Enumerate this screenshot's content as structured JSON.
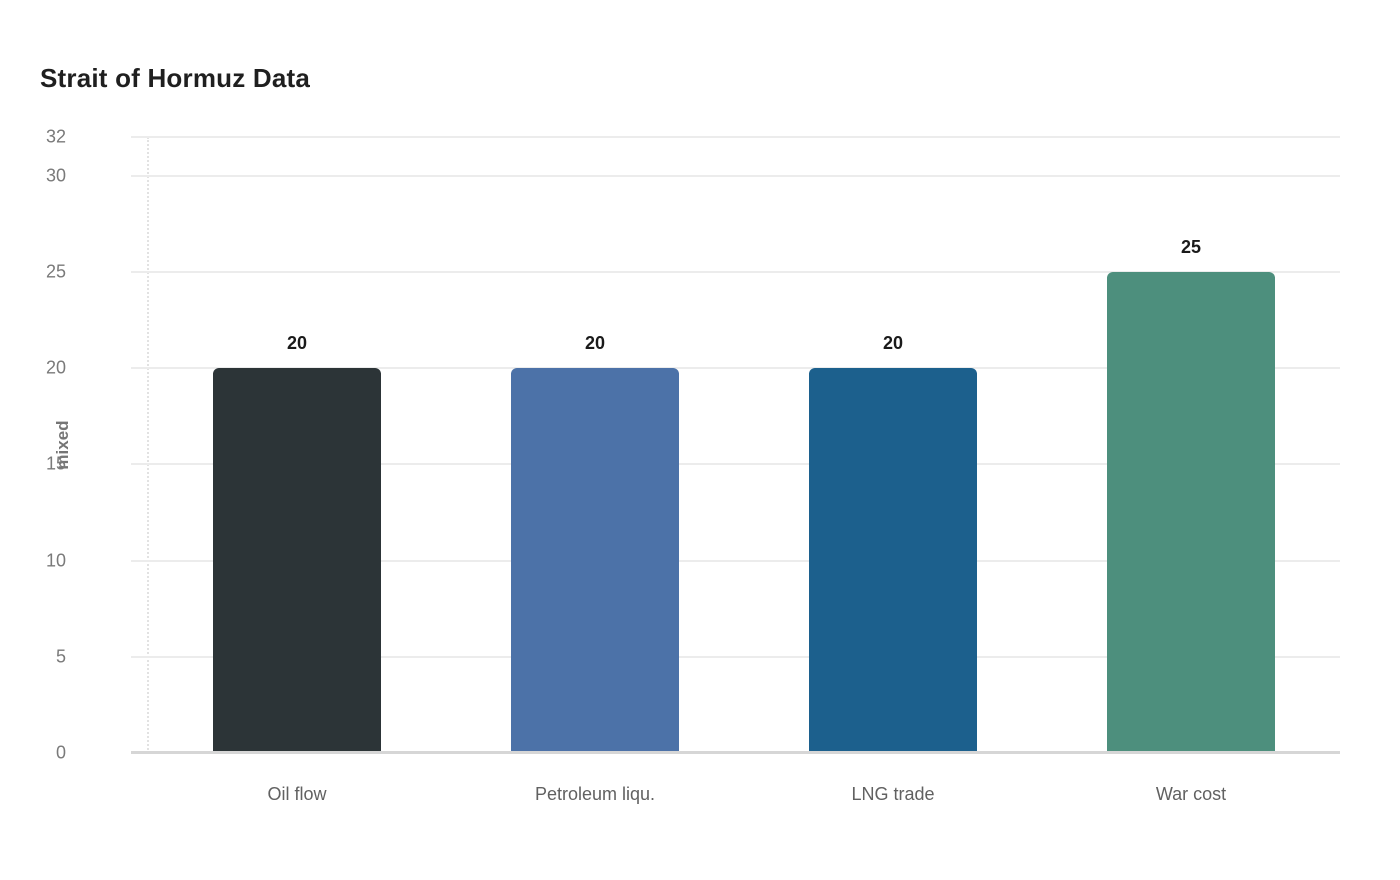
{
  "chart_data": {
    "type": "bar",
    "title": "Strait of Hormuz Data",
    "xlabel": "",
    "ylabel": "mixed",
    "categories": [
      "Oil flow",
      "Petroleum liqu.",
      "LNG trade",
      "War cost"
    ],
    "values": [
      20,
      20,
      20,
      25
    ],
    "value_labels": [
      "20",
      "20",
      "20",
      "25"
    ],
    "bar_colors": [
      "#2c3437",
      "#4c72a8",
      "#1c608d",
      "#4d8f7d"
    ],
    "yticks": [
      0,
      5,
      10,
      15,
      20,
      25,
      30,
      32
    ],
    "ylim": [
      0,
      32
    ],
    "grid": true,
    "legend": false,
    "background": "#ffffff"
  },
  "colors": {
    "title_text": "#1f1f1f",
    "tick_label": "#7a7a7a",
    "axis_title": "#757575",
    "category_label": "#616161",
    "value_label": "#1a1a1a",
    "gridline": "#ececec",
    "baseline": "#d6d6d6",
    "y_axis_dotted": "#e2e2e2"
  }
}
